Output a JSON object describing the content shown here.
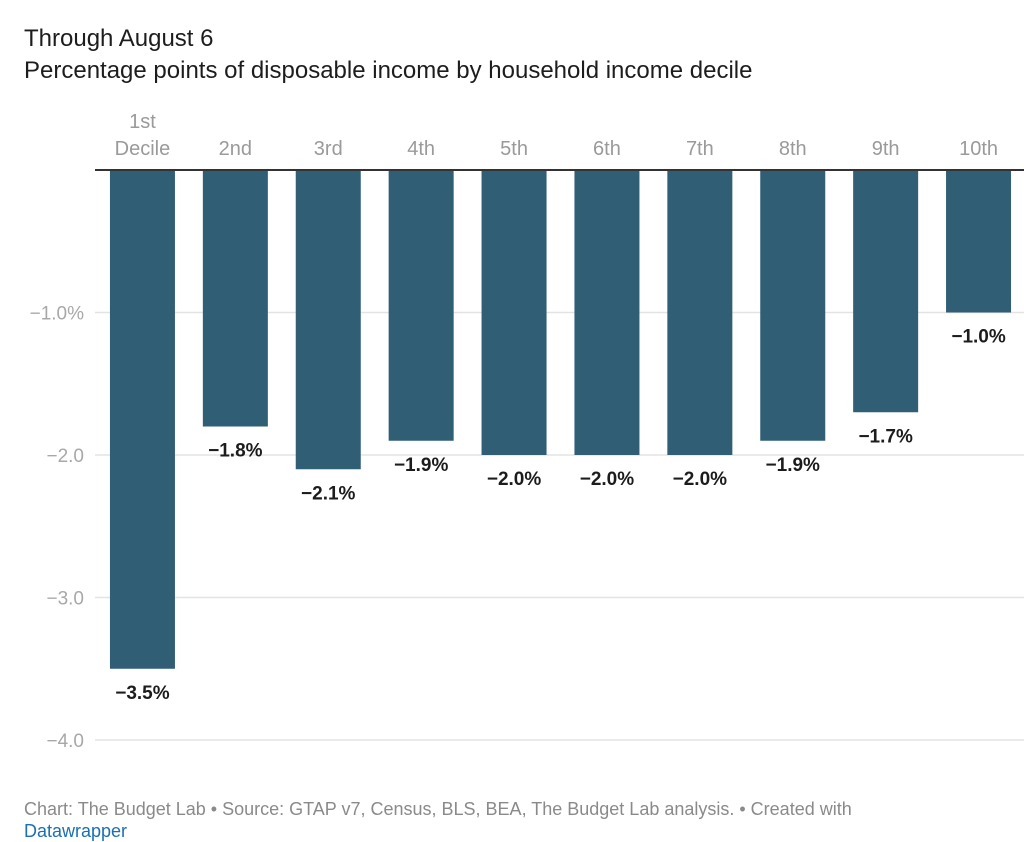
{
  "chart_data": {
    "type": "bar",
    "title": "Through August 6",
    "subtitle": "Percentage points of disposable income by household income decile",
    "categories": [
      [
        "1st",
        "Decile"
      ],
      [
        "2nd"
      ],
      [
        "3rd"
      ],
      [
        "4th"
      ],
      [
        "5th"
      ],
      [
        "6th"
      ],
      [
        "7th"
      ],
      [
        "8th"
      ],
      [
        "9th"
      ],
      [
        "10th"
      ]
    ],
    "values": [
      -3.5,
      -1.8,
      -2.1,
      -1.9,
      -2.0,
      -2.0,
      -2.0,
      -1.9,
      -1.7,
      -1.0
    ],
    "data_labels": [
      "−3.5%",
      "−1.8%",
      "−2.1%",
      "−1.9%",
      "−2.0%",
      "−2.0%",
      "−2.0%",
      "−1.9%",
      "−1.7%",
      "−1.0%"
    ],
    "xlabel": "",
    "ylabel": "",
    "ylim": [
      -4.0,
      0
    ],
    "yticks": [
      {
        "value": -1.0,
        "label": "−1.0%"
      },
      {
        "value": -2.0,
        "label": "−2.0"
      },
      {
        "value": -3.0,
        "label": "−3.0"
      },
      {
        "value": -4.0,
        "label": "−4.0"
      }
    ],
    "x_axis_position": "top",
    "grid": true,
    "bar_color": "#2f5e75"
  },
  "footer": {
    "text": "Chart: The Budget Lab • Source: GTAP v7, Census, BLS, BEA, The Budget Lab analysis. • Created with",
    "link": "Datawrapper"
  }
}
